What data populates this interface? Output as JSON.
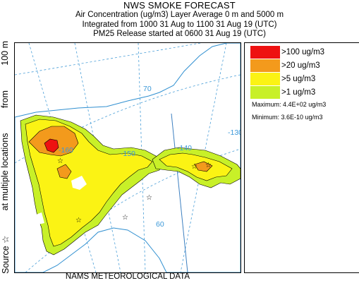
{
  "header": {
    "title": "NWS SMOKE FORECAST",
    "line2": "Air Concentration (ug/m3) Layer Average    0 m and  5000 m",
    "line3": "Integrated from 1000 31 Aug to 1100 31 Aug 19 (UTC)",
    "line4": "PM25 Release started at 0600 31 Aug 19 (UTC)"
  },
  "left_label": {
    "source": "Source ☆",
    "multiple": "at multiple locations",
    "from": "from",
    "height": "100 m"
  },
  "bottom_label": "NAMS METEOROLOGICAL DATA",
  "legend": {
    "items": [
      {
        "label": ">100 ug/m3",
        "color": "#ee1111"
      },
      {
        "label": ">20 ug/m3",
        "color": "#f39a1c"
      },
      {
        "label": ">5 ug/m3",
        "color": "#fbf314"
      },
      {
        "label": ">1 ug/m3",
        "color": "#c8f028"
      }
    ],
    "maximum": "Maximum: 4.4E+02 ug/m3",
    "minimum": "Minimum: 3.6E-10 ug/m3"
  },
  "map": {
    "grid_labels": [
      "70",
      "-130",
      "-160",
      "-150",
      "-140",
      "60"
    ],
    "colors": {
      "coast": "#2f8fd0",
      "grid": "#4a9fd8",
      "border": "#3c7fc0",
      "level1": "#c8f028",
      "level5": "#fbf314",
      "level20": "#f39a1c",
      "level100": "#ee1111"
    }
  }
}
